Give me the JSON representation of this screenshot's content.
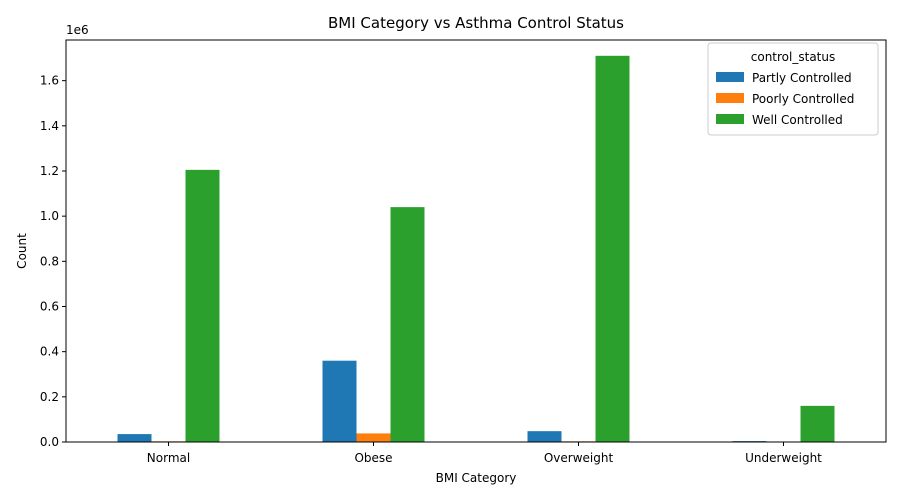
{
  "chart_data": {
    "type": "bar",
    "title": "BMI Category vs Asthma Control Status",
    "xlabel": "BMI Category",
    "ylabel": "Count",
    "scale_label": "1e6",
    "categories": [
      "Normal",
      "Obese",
      "Overweight",
      "Underweight"
    ],
    "series": [
      {
        "name": "Partly Controlled",
        "color": "#1f77b4",
        "values": [
          35000,
          360000,
          48000,
          4000
        ]
      },
      {
        "name": "Poorly Controlled",
        "color": "#ff7f0e",
        "values": [
          3000,
          38000,
          3000,
          500
        ]
      },
      {
        "name": "Well Controlled",
        "color": "#2ca02c",
        "values": [
          1205000,
          1040000,
          1710000,
          160000
        ]
      }
    ],
    "ylim": [
      0,
      1780000
    ],
    "yticks": [
      0,
      200000,
      400000,
      600000,
      800000,
      1000000,
      1200000,
      1400000,
      1600000
    ],
    "ytick_labels": [
      "0.0",
      "0.2",
      "0.4",
      "0.6",
      "0.8",
      "1.0",
      "1.2",
      "1.4",
      "1.6"
    ],
    "grid": false,
    "legend": {
      "title": "control_status",
      "position": "top-right"
    }
  }
}
